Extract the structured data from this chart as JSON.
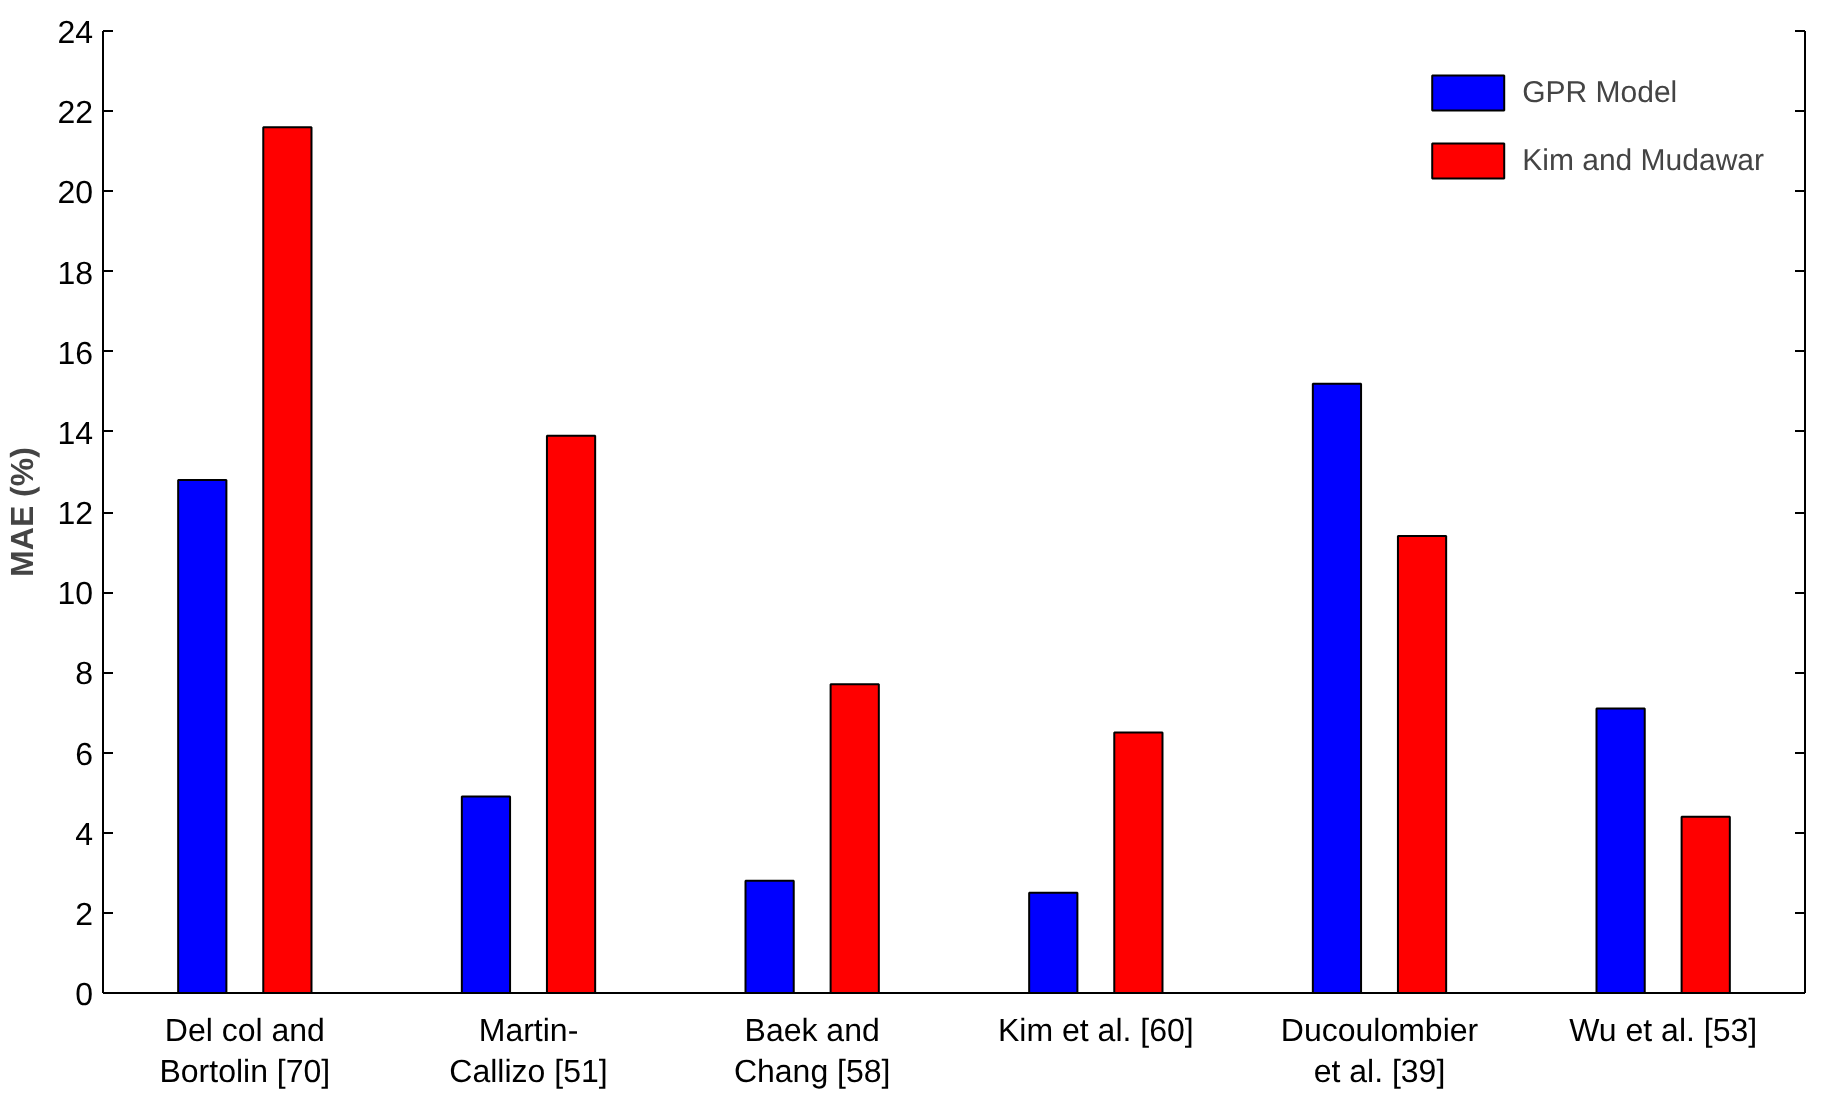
{
  "chart_data": {
    "type": "bar",
    "ylabel": "MAE (%)",
    "categories": [
      "Del col and\nBortolin [70]",
      "Martin-\nCallizo [51]",
      "Baek and\nChang [58]",
      "Kim et al. [60]",
      "Ducoulombier\net al. [39]",
      "Wu et al. [53]"
    ],
    "series": [
      {
        "name": "GPR Model",
        "color": "#0000ff",
        "values": [
          12.8,
          4.9,
          2.8,
          2.5,
          15.2,
          7.1
        ]
      },
      {
        "name": "Kim and Mudawar",
        "color": "#ff0000",
        "values": [
          21.6,
          13.9,
          7.7,
          6.5,
          11.4,
          4.4
        ]
      }
    ],
    "ylim": [
      0,
      24
    ],
    "yticks": [
      0,
      2,
      4,
      6,
      8,
      10,
      12,
      14,
      16,
      18,
      20,
      22,
      24
    ],
    "grid": false,
    "legend": "top right"
  }
}
